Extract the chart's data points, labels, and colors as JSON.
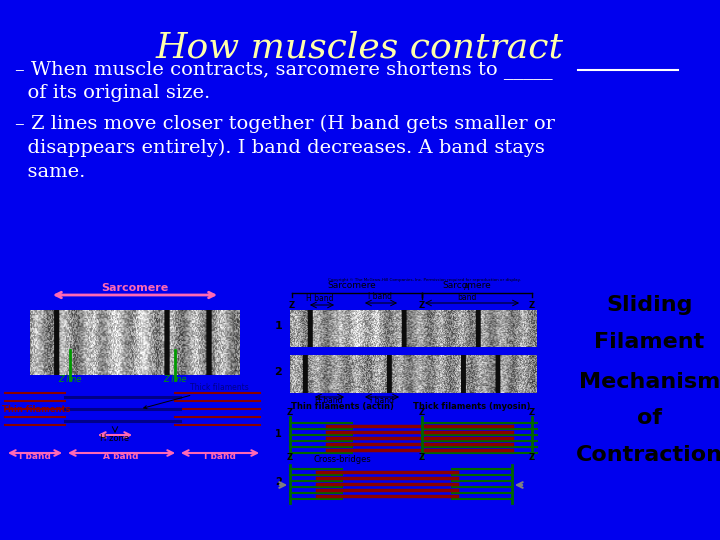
{
  "background_color": "#0000EE",
  "title": "How muscles contract",
  "title_color": "#FFFFAA",
  "title_fontsize": 26,
  "bullet1_line1": "– When muscle contracts, sarcomere shortens to _____",
  "bullet1_line2": "  of its original size.",
  "bullet2_line1": "– Z lines move closer together (H band gets smaller or",
  "bullet2_line2": "  disappears entirely). I band decreases. A band stays",
  "bullet2_line3": "  same.",
  "text_color": "#FFFFFF",
  "text_fontsize": 14,
  "sliding_title_lines": [
    "Sliding",
    "Filament",
    "Mechanism",
    "of",
    "Contraction"
  ],
  "sliding_title_color": "#000000",
  "sliding_title_fontsize": 16,
  "pink": "#FF69B4",
  "green": "#009900",
  "darkblue": "#000088",
  "darkred": "#880000",
  "white": "#FFFFFF",
  "black": "#000000"
}
